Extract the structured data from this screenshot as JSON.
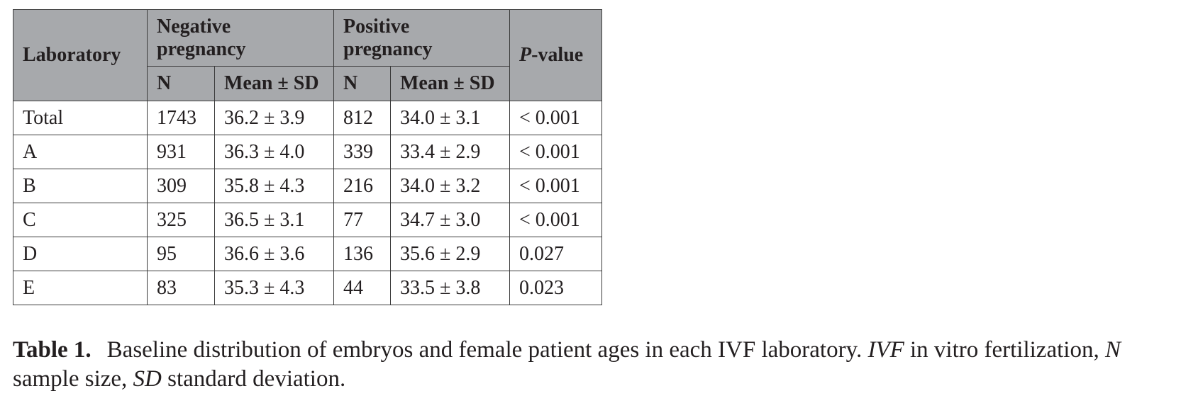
{
  "table": {
    "headers": {
      "laboratory": "Laboratory",
      "negative_group": "Negative pregnancy",
      "positive_group": "Positive pregnancy",
      "n": "N",
      "mean_sd": "Mean ± SD",
      "p_value_italic": "P",
      "p_value_rest": "-value"
    },
    "rows": [
      {
        "lab": "Total",
        "neg_n": "1743",
        "neg_mean": "36.2 ± 3.9",
        "pos_n": "812",
        "pos_mean": "34.0 ± 3.1",
        "p": "< 0.001"
      },
      {
        "lab": "A",
        "neg_n": "931",
        "neg_mean": "36.3 ± 4.0",
        "pos_n": "339",
        "pos_mean": "33.4 ± 2.9",
        "p": "< 0.001"
      },
      {
        "lab": "B",
        "neg_n": "309",
        "neg_mean": "35.8 ± 4.3",
        "pos_n": "216",
        "pos_mean": "34.0 ± 3.2",
        "p": "< 0.001"
      },
      {
        "lab": "C",
        "neg_n": "325",
        "neg_mean": "36.5 ± 3.1",
        "pos_n": "77",
        "pos_mean": "34.7 ± 3.0",
        "p": "< 0.001"
      },
      {
        "lab": "D",
        "neg_n": "95",
        "neg_mean": "36.6 ± 3.6",
        "pos_n": "136",
        "pos_mean": "35.6 ± 2.9",
        "p": "0.027"
      },
      {
        "lab": "E",
        "neg_n": "83",
        "neg_mean": "35.3 ± 4.3",
        "pos_n": "44",
        "pos_mean": "33.5 ± 3.8",
        "p": "0.023"
      }
    ]
  },
  "caption": {
    "label": "Table 1.",
    "text_1": "Baseline distribution of embryos and female patient ages in each IVF laboratory. ",
    "abbr_ivf": "IVF",
    "text_2": " in vitro fertilization, ",
    "abbr_n": "N",
    "text_3": " sample size, ",
    "abbr_sd": "SD",
    "text_4": " standard deviation."
  }
}
